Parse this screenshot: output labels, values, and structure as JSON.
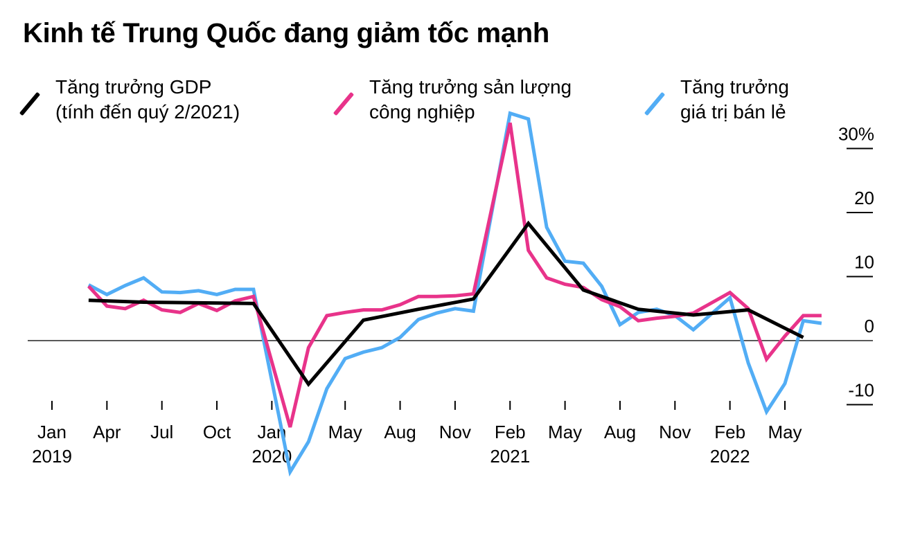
{
  "title": "Kinh tế Trung Quốc đang giảm tốc mạnh",
  "legend": [
    {
      "line1": "Tăng trưởng GDP",
      "line2": "(tính đến quý 2/2021)",
      "color": "#000000"
    },
    {
      "line1": "Tăng trưởng sản lượng",
      "line2": "công nghiệp",
      "color": "#e8338a"
    },
    {
      "line1": "Tăng trưởng",
      "line2": "giá trị bán lẻ",
      "color": "#52adf5"
    }
  ],
  "chart_data": {
    "type": "line",
    "title": "Kinh tế Trung Quốc đang giảm tốc mạnh",
    "ylim": [
      -11,
      33
    ],
    "y_ticks": [
      {
        "value": 30,
        "label": "30%"
      },
      {
        "value": 20,
        "label": "20"
      },
      {
        "value": 10,
        "label": "10"
      },
      {
        "value": 0,
        "label": "0"
      },
      {
        "value": -10,
        "label": "-10"
      }
    ],
    "x_ticks": [
      {
        "month": "2019-01",
        "label": "Jan",
        "year": "2019"
      },
      {
        "month": "2019-04",
        "label": "Apr"
      },
      {
        "month": "2019-07",
        "label": "Jul"
      },
      {
        "month": "2019-10",
        "label": "Oct"
      },
      {
        "month": "2020-01",
        "label": "Jan",
        "year": "2020"
      },
      {
        "month": "2020-05",
        "label": "May"
      },
      {
        "month": "2020-08",
        "label": "Aug"
      },
      {
        "month": "2020-11",
        "label": "Nov"
      },
      {
        "month": "2021-02",
        "label": "Feb",
        "year": "2021"
      },
      {
        "month": "2021-05",
        "label": "May"
      },
      {
        "month": "2021-08",
        "label": "Aug"
      },
      {
        "month": "2021-11",
        "label": "Nov"
      },
      {
        "month": "2022-02",
        "label": "Feb",
        "year": "2022"
      },
      {
        "month": "2022-05",
        "label": "May"
      }
    ],
    "y_axis_position": "right",
    "grid": false,
    "series": [
      {
        "name": "Tăng trưởng giá trị bán lẻ",
        "color": "#52adf5",
        "x": [
          "2019-03",
          "2019-04",
          "2019-05",
          "2019-06",
          "2019-07",
          "2019-08",
          "2019-09",
          "2019-10",
          "2019-11",
          "2019-12",
          "2020-02",
          "2020-03",
          "2020-04",
          "2020-05",
          "2020-06",
          "2020-07",
          "2020-08",
          "2020-09",
          "2020-10",
          "2020-11",
          "2020-12",
          "2021-02",
          "2021-03",
          "2021-04",
          "2021-05",
          "2021-06",
          "2021-07",
          "2021-08",
          "2021-09",
          "2021-10",
          "2021-11",
          "2021-12",
          "2022-02",
          "2022-03",
          "2022-04",
          "2022-05",
          "2022-06",
          "2022-07"
        ],
        "y": [
          8.7,
          7.2,
          8.6,
          9.8,
          7.6,
          7.5,
          7.8,
          7.2,
          8.0,
          8.0,
          -20.5,
          -15.8,
          -7.5,
          -2.8,
          -1.8,
          -1.1,
          0.5,
          3.3,
          4.3,
          5.0,
          4.6,
          35.5,
          34.6,
          17.7,
          12.4,
          12.1,
          8.5,
          2.5,
          4.4,
          4.9,
          3.9,
          1.7,
          6.7,
          -3.5,
          -11.1,
          -6.7,
          3.1,
          2.7
        ]
      },
      {
        "name": "Tăng trưởng sản lượng công nghiệp",
        "color": "#e8338a",
        "x": [
          "2019-03",
          "2019-04",
          "2019-05",
          "2019-06",
          "2019-07",
          "2019-08",
          "2019-09",
          "2019-10",
          "2019-11",
          "2019-12",
          "2020-02",
          "2020-03",
          "2020-04",
          "2020-05",
          "2020-06",
          "2020-07",
          "2020-08",
          "2020-09",
          "2020-10",
          "2020-11",
          "2020-12",
          "2021-02",
          "2021-03",
          "2021-04",
          "2021-05",
          "2021-06",
          "2021-07",
          "2021-08",
          "2021-09",
          "2021-10",
          "2021-11",
          "2021-12",
          "2022-02",
          "2022-03",
          "2022-04",
          "2022-05",
          "2022-06",
          "2022-07"
        ],
        "y": [
          8.5,
          5.4,
          5.0,
          6.3,
          4.8,
          4.4,
          5.8,
          4.7,
          6.2,
          6.9,
          -13.5,
          -1.1,
          3.9,
          4.4,
          4.8,
          4.8,
          5.6,
          6.9,
          6.9,
          7.0,
          7.3,
          34.0,
          14.1,
          9.8,
          8.8,
          8.3,
          6.4,
          5.3,
          3.1,
          3.5,
          3.8,
          4.3,
          7.5,
          5.0,
          -2.9,
          0.7,
          3.9,
          3.9
        ]
      },
      {
        "name": "Tăng trưởng GDP",
        "color": "#000000",
        "x": [
          "2019-03",
          "2019-06",
          "2019-09",
          "2019-12",
          "2020-03",
          "2020-06",
          "2020-09",
          "2020-12",
          "2021-03",
          "2021-06",
          "2021-09",
          "2021-12",
          "2022-03",
          "2022-06"
        ],
        "y": [
          6.3,
          6.0,
          5.9,
          5.8,
          -6.8,
          3.2,
          4.9,
          6.5,
          18.3,
          7.9,
          4.9,
          4.0,
          4.8,
          0.5
        ]
      }
    ]
  }
}
